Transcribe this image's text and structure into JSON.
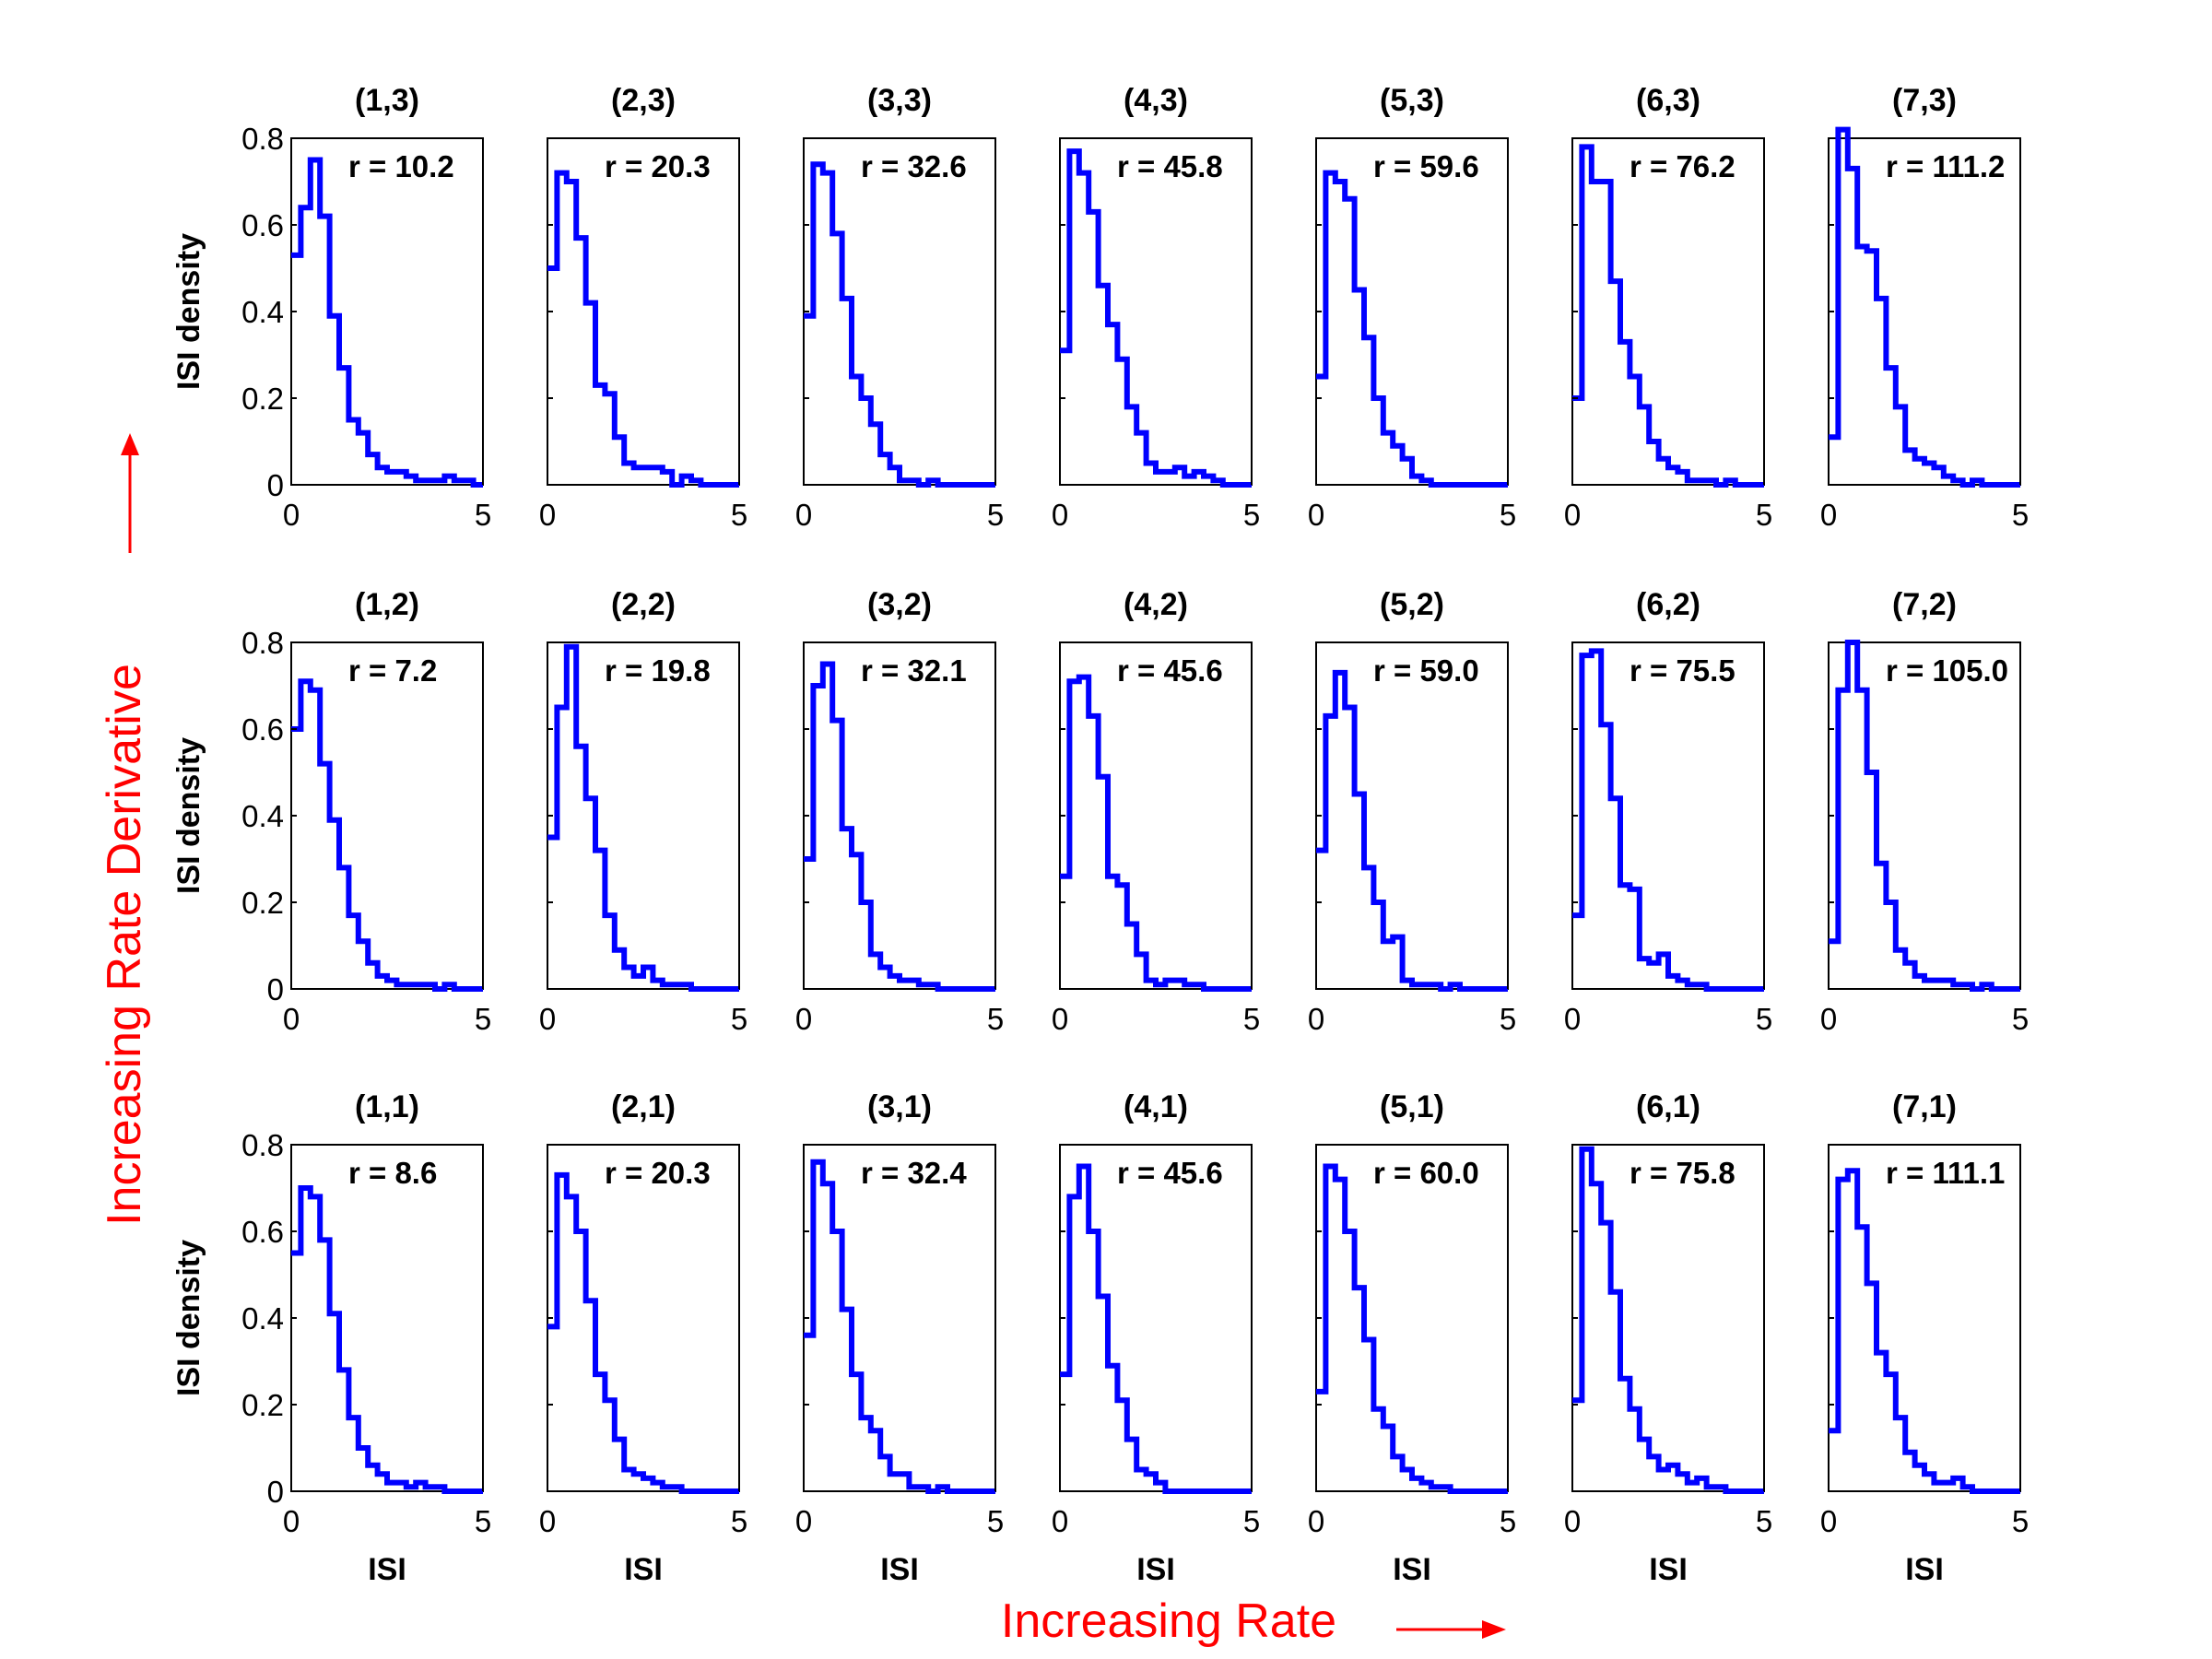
{
  "figure": {
    "bottom_caption": "Increasing Rate",
    "left_caption": "Increasing Rate Derivative",
    "caption_color": "#ff0000",
    "line_color": "#0000ff",
    "ylabel": "ISI density",
    "xlabel": "ISI"
  },
  "chart_data": {
    "type": "line",
    "layout": "3x7 grid of step histograms",
    "xlim": [
      0,
      5
    ],
    "ylim": [
      0,
      0.8
    ],
    "xticks": [
      "0",
      "5"
    ],
    "yticks": [
      "0",
      "0.2",
      "0.4",
      "0.6",
      "0.8"
    ],
    "bin_edges": [
      0,
      0.25,
      0.5,
      0.75,
      1.0,
      1.25,
      1.5,
      1.75,
      2.0,
      2.25,
      2.5,
      2.75,
      3.0,
      3.25,
      3.5,
      3.75,
      4.0,
      4.25,
      4.5,
      4.75,
      5.0
    ],
    "rows": [
      {
        "panels": [
          {
            "title": "(1,3)",
            "r": "r = 10.2",
            "values": [
              0.53,
              0.64,
              0.75,
              0.62,
              0.39,
              0.27,
              0.15,
              0.12,
              0.07,
              0.04,
              0.03,
              0.03,
              0.02,
              0.01,
              0.01,
              0.01,
              0.02,
              0.01,
              0.01,
              0.0
            ]
          },
          {
            "title": "(2,3)",
            "r": "r = 20.3",
            "values": [
              0.5,
              0.72,
              0.7,
              0.57,
              0.42,
              0.23,
              0.21,
              0.11,
              0.05,
              0.04,
              0.04,
              0.04,
              0.03,
              0.0,
              0.02,
              0.01,
              0.0,
              0.0,
              0.0,
              0.0
            ]
          },
          {
            "title": "(3,3)",
            "r": "r = 32.6",
            "values": [
              0.39,
              0.74,
              0.72,
              0.58,
              0.43,
              0.25,
              0.2,
              0.14,
              0.07,
              0.04,
              0.01,
              0.01,
              0.0,
              0.01,
              0.0,
              0.0,
              0.0,
              0.0,
              0.0,
              0.0
            ]
          },
          {
            "title": "(4,3)",
            "r": "r = 45.8",
            "values": [
              0.31,
              0.77,
              0.72,
              0.63,
              0.46,
              0.37,
              0.29,
              0.18,
              0.12,
              0.05,
              0.03,
              0.03,
              0.04,
              0.02,
              0.03,
              0.02,
              0.01,
              0.0,
              0.0,
              0.0
            ]
          },
          {
            "title": "(5,3)",
            "r": "r = 59.6",
            "values": [
              0.25,
              0.72,
              0.7,
              0.66,
              0.45,
              0.34,
              0.2,
              0.12,
              0.09,
              0.06,
              0.02,
              0.01,
              0.0,
              0.0,
              0.0,
              0.0,
              0.0,
              0.0,
              0.0,
              0.0
            ]
          },
          {
            "title": "(6,3)",
            "r": "r = 76.2",
            "values": [
              0.2,
              0.78,
              0.7,
              0.7,
              0.47,
              0.33,
              0.25,
              0.18,
              0.1,
              0.06,
              0.04,
              0.03,
              0.01,
              0.01,
              0.01,
              0.0,
              0.01,
              0.0,
              0.0,
              0.0
            ]
          },
          {
            "title": "(7,3)",
            "r": "r = 111.2",
            "values": [
              0.11,
              0.82,
              0.73,
              0.55,
              0.54,
              0.43,
              0.27,
              0.18,
              0.08,
              0.06,
              0.05,
              0.04,
              0.02,
              0.01,
              0.0,
              0.01,
              0.0,
              0.0,
              0.0,
              0.0
            ]
          }
        ]
      },
      {
        "panels": [
          {
            "title": "(1,2)",
            "r": "r =  7.2",
            "values": [
              0.6,
              0.71,
              0.69,
              0.52,
              0.39,
              0.28,
              0.17,
              0.11,
              0.06,
              0.03,
              0.02,
              0.01,
              0.01,
              0.01,
              0.01,
              0.0,
              0.01,
              0.0,
              0.0,
              0.0
            ]
          },
          {
            "title": "(2,2)",
            "r": "r = 19.8",
            "values": [
              0.35,
              0.65,
              0.79,
              0.56,
              0.44,
              0.32,
              0.17,
              0.09,
              0.05,
              0.03,
              0.05,
              0.02,
              0.01,
              0.01,
              0.01,
              0.0,
              0.0,
              0.0,
              0.0,
              0.0
            ]
          },
          {
            "title": "(3,2)",
            "r": "r = 32.1",
            "values": [
              0.3,
              0.7,
              0.75,
              0.62,
              0.37,
              0.31,
              0.2,
              0.08,
              0.05,
              0.03,
              0.02,
              0.02,
              0.01,
              0.01,
              0.0,
              0.0,
              0.0,
              0.0,
              0.0,
              0.0
            ]
          },
          {
            "title": "(4,2)",
            "r": "r = 45.6",
            "values": [
              0.26,
              0.71,
              0.72,
              0.63,
              0.49,
              0.26,
              0.24,
              0.15,
              0.08,
              0.02,
              0.01,
              0.02,
              0.02,
              0.01,
              0.01,
              0.0,
              0.0,
              0.0,
              0.0,
              0.0
            ]
          },
          {
            "title": "(5,2)",
            "r": "r = 59.0",
            "values": [
              0.32,
              0.63,
              0.73,
              0.65,
              0.45,
              0.28,
              0.2,
              0.11,
              0.12,
              0.02,
              0.01,
              0.01,
              0.01,
              0.0,
              0.01,
              0.0,
              0.0,
              0.0,
              0.0,
              0.0
            ]
          },
          {
            "title": "(6,2)",
            "r": "r = 75.5",
            "values": [
              0.17,
              0.77,
              0.78,
              0.61,
              0.44,
              0.24,
              0.23,
              0.07,
              0.06,
              0.08,
              0.03,
              0.02,
              0.01,
              0.01,
              0.0,
              0.0,
              0.0,
              0.0,
              0.0,
              0.0
            ]
          },
          {
            "title": "(7,2)",
            "r": "r = 105.0",
            "values": [
              0.11,
              0.69,
              0.8,
              0.69,
              0.5,
              0.29,
              0.2,
              0.09,
              0.06,
              0.03,
              0.02,
              0.02,
              0.02,
              0.01,
              0.01,
              0.0,
              0.01,
              0.0,
              0.0,
              0.0
            ]
          }
        ]
      },
      {
        "panels": [
          {
            "title": "(1,1)",
            "r": "r =  8.6",
            "values": [
              0.55,
              0.7,
              0.68,
              0.58,
              0.41,
              0.28,
              0.17,
              0.1,
              0.06,
              0.04,
              0.02,
              0.02,
              0.01,
              0.02,
              0.01,
              0.01,
              0.0,
              0.0,
              0.0,
              0.0
            ]
          },
          {
            "title": "(2,1)",
            "r": "r = 20.3",
            "values": [
              0.38,
              0.73,
              0.68,
              0.6,
              0.44,
              0.27,
              0.21,
              0.12,
              0.05,
              0.04,
              0.03,
              0.02,
              0.01,
              0.01,
              0.0,
              0.0,
              0.0,
              0.0,
              0.0,
              0.0
            ]
          },
          {
            "title": "(3,1)",
            "r": "r = 32.4",
            "values": [
              0.36,
              0.76,
              0.71,
              0.6,
              0.42,
              0.27,
              0.17,
              0.14,
              0.08,
              0.04,
              0.04,
              0.01,
              0.01,
              0.0,
              0.01,
              0.0,
              0.0,
              0.0,
              0.0,
              0.0
            ]
          },
          {
            "title": "(4,1)",
            "r": "r = 45.6",
            "values": [
              0.27,
              0.68,
              0.75,
              0.6,
              0.45,
              0.29,
              0.21,
              0.12,
              0.05,
              0.04,
              0.02,
              0.0,
              0.0,
              0.0,
              0.0,
              0.0,
              0.0,
              0.0,
              0.0,
              0.0
            ]
          },
          {
            "title": "(5,1)",
            "r": "r = 60.0",
            "values": [
              0.23,
              0.75,
              0.72,
              0.6,
              0.47,
              0.35,
              0.19,
              0.15,
              0.08,
              0.05,
              0.03,
              0.02,
              0.01,
              0.01,
              0.0,
              0.0,
              0.0,
              0.0,
              0.0,
              0.0
            ]
          },
          {
            "title": "(6,1)",
            "r": "r = 75.8",
            "values": [
              0.21,
              0.79,
              0.71,
              0.62,
              0.46,
              0.26,
              0.19,
              0.12,
              0.08,
              0.05,
              0.06,
              0.04,
              0.02,
              0.03,
              0.01,
              0.01,
              0.0,
              0.0,
              0.0,
              0.0
            ]
          },
          {
            "title": "(7,1)",
            "r": "r = 111.1",
            "values": [
              0.14,
              0.72,
              0.74,
              0.61,
              0.48,
              0.32,
              0.27,
              0.17,
              0.09,
              0.06,
              0.04,
              0.02,
              0.02,
              0.03,
              0.01,
              0.0,
              0.0,
              0.0,
              0.0,
              0.0
            ]
          }
        ]
      }
    ]
  }
}
